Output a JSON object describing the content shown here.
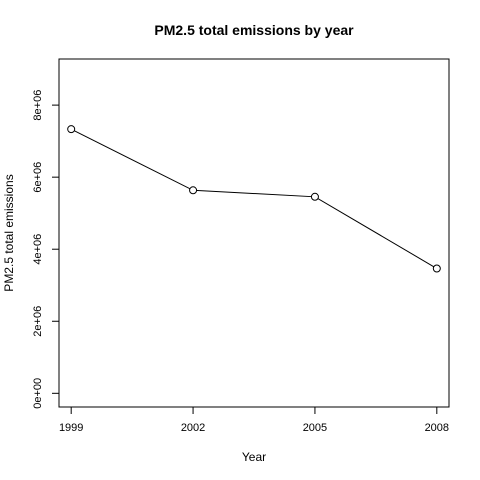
{
  "chart_data": {
    "type": "line",
    "title": "PM2.5 total emissions by year",
    "xlabel": "Year",
    "ylabel": "PM2.5 total emissions",
    "x": [
      1999,
      2002,
      2005,
      2008
    ],
    "series": [
      {
        "values": [
          7332967,
          5635780,
          5454703,
          3464206
        ]
      }
    ],
    "x_ticks": [
      "1999",
      "2002",
      "2005",
      "2008"
    ],
    "y_ticks": [
      {
        "value": 0,
        "label": "0e+00"
      },
      {
        "value": 2000000,
        "label": "2e+06"
      },
      {
        "value": 4000000,
        "label": "4e+06"
      },
      {
        "value": 6000000,
        "label": "6e+06"
      },
      {
        "value": 8000000,
        "label": "8e+06"
      }
    ],
    "xlim": [
      1998.7,
      2008.3
    ],
    "ylim": [
      -380000,
      9280000
    ],
    "grid": false,
    "marker": "open-circle",
    "line_color": "#000000"
  }
}
